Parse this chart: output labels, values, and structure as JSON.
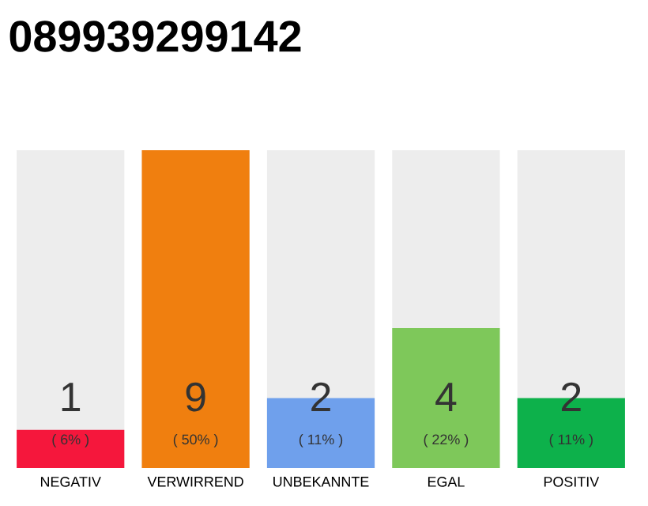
{
  "chart_data": {
    "type": "bar",
    "title": "089939299142",
    "categories": [
      "NEGATIV",
      "VERWIRREND",
      "UNBEKANNTE",
      "EGAL",
      "POSITIV"
    ],
    "values": [
      6,
      50,
      11,
      22,
      11
    ],
    "colors": [
      "#f5173c",
      "#f07f0f",
      "#6fa0ec",
      "#7ec85a",
      "#0db14b"
    ],
    "value_labels": [
      "( 6% )",
      "( 50% )",
      "( 11% )",
      "( 22% )",
      "( 11% )"
    ],
    "annotations": [
      "1",
      "9",
      "2",
      "4",
      "2"
    ]
  }
}
